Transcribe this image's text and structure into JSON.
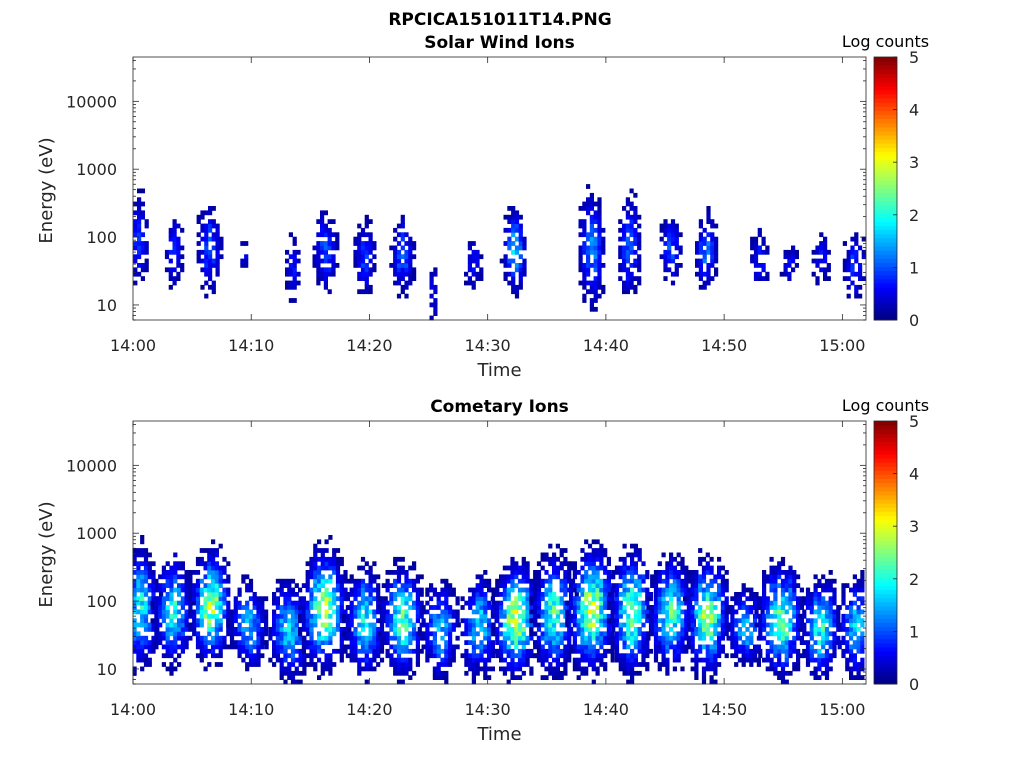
{
  "figure_title": "RPCICA151011T14.PNG",
  "chart_data": [
    {
      "type": "heatmap",
      "title": "Solar Wind Ions",
      "xlabel": "Time",
      "ylabel": "Energy (eV)",
      "x_ticks": [
        "14:00",
        "14:10",
        "14:20",
        "14:30",
        "14:40",
        "14:50",
        "15:00"
      ],
      "x_range_minutes": [
        0,
        62
      ],
      "y_scale": "log",
      "y_ticks": [
        10,
        100,
        1000,
        10000
      ],
      "ylim": [
        6,
        45000
      ],
      "colorbar": {
        "label": "Log counts",
        "range": [
          0,
          5
        ],
        "ticks": [
          0,
          1,
          2,
          3,
          4,
          5
        ],
        "colormap": "jet"
      },
      "grid": false,
      "bursts": [
        {
          "t": 0.5,
          "e": 90,
          "w": 0.6,
          "span": 0.55,
          "peak": 0.9
        },
        {
          "t": 3.5,
          "e": 65,
          "w": 0.6,
          "span": 0.4,
          "peak": 0.9
        },
        {
          "t": 6.5,
          "e": 70,
          "w": 0.8,
          "span": 0.5,
          "peak": 1.0
        },
        {
          "t": 9.4,
          "e": 60,
          "w": 0.3,
          "span": 0.2,
          "peak": 0.6
        },
        {
          "t": 13.5,
          "e": 35,
          "w": 0.5,
          "span": 0.4,
          "peak": 0.7
        },
        {
          "t": 16.3,
          "e": 65,
          "w": 0.8,
          "span": 0.45,
          "peak": 1.0
        },
        {
          "t": 19.6,
          "e": 55,
          "w": 0.7,
          "span": 0.45,
          "peak": 0.9
        },
        {
          "t": 22.8,
          "e": 55,
          "w": 0.8,
          "span": 0.4,
          "peak": 1.1
        },
        {
          "t": 25.4,
          "e": 15,
          "w": 0.3,
          "span": 0.4,
          "peak": 0.6
        },
        {
          "t": 28.8,
          "e": 40,
          "w": 0.6,
          "span": 0.3,
          "peak": 0.7
        },
        {
          "t": 32.3,
          "e": 60,
          "w": 0.7,
          "span": 0.45,
          "peak": 1.7
        },
        {
          "t": 38.8,
          "e": 70,
          "w": 0.8,
          "span": 0.6,
          "peak": 1.4
        },
        {
          "t": 42.0,
          "e": 70,
          "w": 0.7,
          "span": 0.55,
          "peak": 1.2
        },
        {
          "t": 45.5,
          "e": 65,
          "w": 0.7,
          "span": 0.4,
          "peak": 1.0
        },
        {
          "t": 48.5,
          "e": 65,
          "w": 0.7,
          "span": 0.4,
          "peak": 1.3
        },
        {
          "t": 53.0,
          "e": 45,
          "w": 0.6,
          "span": 0.35,
          "peak": 0.8
        },
        {
          "t": 55.5,
          "e": 42,
          "w": 0.6,
          "span": 0.2,
          "peak": 0.7
        },
        {
          "t": 58.2,
          "e": 45,
          "w": 0.6,
          "span": 0.3,
          "peak": 0.7
        },
        {
          "t": 61.0,
          "e": 40,
          "w": 0.7,
          "span": 0.4,
          "peak": 0.9
        }
      ]
    },
    {
      "type": "heatmap",
      "title": "Cometary Ions",
      "xlabel": "Time",
      "ylabel": "Energy (eV)",
      "x_ticks": [
        "14:00",
        "14:10",
        "14:20",
        "14:30",
        "14:40",
        "14:50",
        "15:00"
      ],
      "x_range_minutes": [
        0,
        62
      ],
      "y_scale": "log",
      "y_ticks": [
        10,
        100,
        1000,
        10000
      ],
      "ylim": [
        6,
        45000
      ],
      "colorbar": {
        "label": "Log counts",
        "range": [
          0,
          5
        ],
        "ticks": [
          0,
          1,
          2,
          3,
          4,
          5
        ],
        "colormap": "jet"
      },
      "grid": false,
      "bursts": [
        {
          "t": 0.6,
          "e": 75,
          "w": 1.1,
          "span": 0.6,
          "peak": 2.0
        },
        {
          "t": 3.4,
          "e": 70,
          "w": 1.1,
          "span": 0.55,
          "peak": 2.0
        },
        {
          "t": 6.6,
          "e": 80,
          "w": 1.1,
          "span": 0.55,
          "peak": 2.8
        },
        {
          "t": 9.8,
          "e": 45,
          "w": 1.1,
          "span": 0.45,
          "peak": 1.6
        },
        {
          "t": 13.2,
          "e": 35,
          "w": 1.2,
          "span": 0.5,
          "peak": 1.8
        },
        {
          "t": 16.2,
          "e": 70,
          "w": 1.3,
          "span": 0.6,
          "peak": 2.8
        },
        {
          "t": 19.6,
          "e": 50,
          "w": 1.1,
          "span": 0.55,
          "peak": 2.0
        },
        {
          "t": 22.8,
          "e": 55,
          "w": 1.2,
          "span": 0.55,
          "peak": 2.4
        },
        {
          "t": 26.0,
          "e": 40,
          "w": 1.1,
          "span": 0.5,
          "peak": 1.6
        },
        {
          "t": 29.3,
          "e": 40,
          "w": 1.1,
          "span": 0.5,
          "peak": 1.8
        },
        {
          "t": 32.4,
          "e": 55,
          "w": 1.2,
          "span": 0.55,
          "peak": 3.1
        },
        {
          "t": 35.6,
          "e": 65,
          "w": 1.2,
          "span": 0.6,
          "peak": 2.3
        },
        {
          "t": 38.8,
          "e": 75,
          "w": 1.3,
          "span": 0.6,
          "peak": 2.9
        },
        {
          "t": 42.2,
          "e": 70,
          "w": 1.2,
          "span": 0.6,
          "peak": 2.6
        },
        {
          "t": 45.5,
          "e": 65,
          "w": 1.2,
          "span": 0.55,
          "peak": 2.3
        },
        {
          "t": 48.6,
          "e": 60,
          "w": 1.2,
          "span": 0.55,
          "peak": 2.7
        },
        {
          "t": 51.8,
          "e": 40,
          "w": 1.1,
          "span": 0.4,
          "peak": 1.6
        },
        {
          "t": 54.8,
          "e": 55,
          "w": 1.3,
          "span": 0.55,
          "peak": 2.5
        },
        {
          "t": 58.2,
          "e": 40,
          "w": 1.1,
          "span": 0.5,
          "peak": 2.1
        },
        {
          "t": 61.2,
          "e": 40,
          "w": 1.1,
          "span": 0.5,
          "peak": 1.8
        }
      ]
    }
  ]
}
